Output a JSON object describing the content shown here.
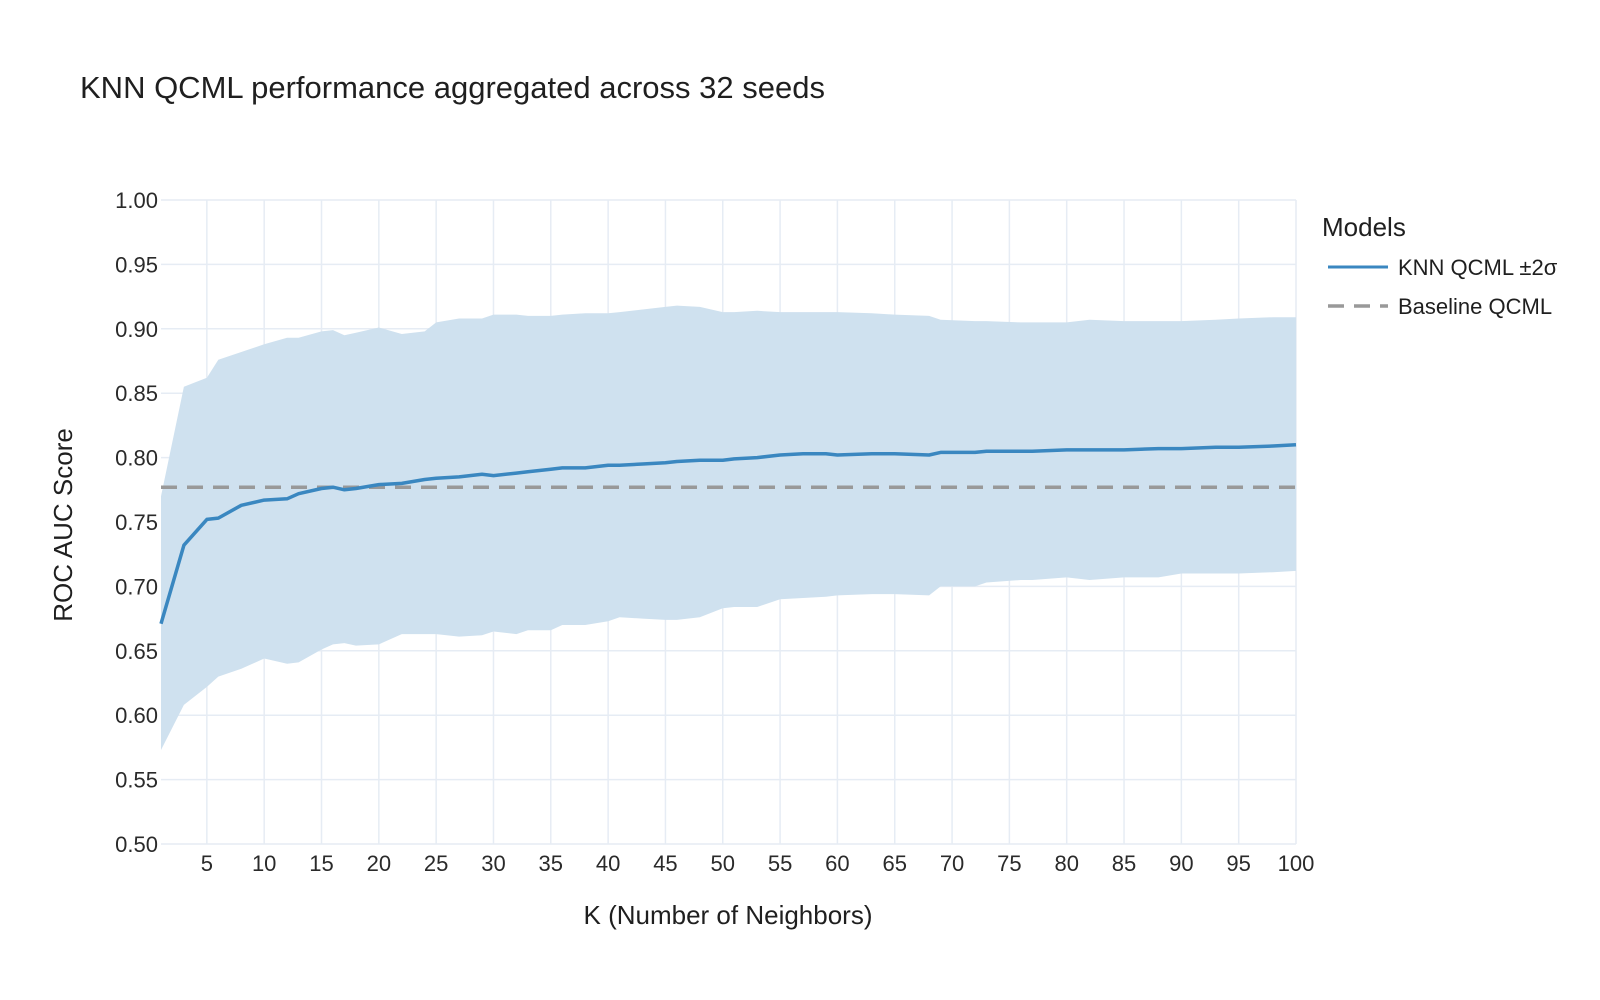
{
  "chart_data": {
    "type": "line",
    "title": "KNN QCML performance aggregated across 32 seeds",
    "xlabel": "K (Number of Neighbors)",
    "ylabel": "ROC AUC Score",
    "xlim": [
      1,
      100
    ],
    "ylim": [
      0.5,
      1.0
    ],
    "xticks": [
      5,
      10,
      15,
      20,
      25,
      30,
      35,
      40,
      45,
      50,
      55,
      60,
      65,
      70,
      75,
      80,
      85,
      90,
      95,
      100
    ],
    "yticks": [
      0.5,
      0.55,
      0.6,
      0.65,
      0.7,
      0.75,
      0.8,
      0.85,
      0.9,
      0.95,
      1.0
    ],
    "grid": true,
    "legend": {
      "title": "Models",
      "placement": "right"
    },
    "series": [
      {
        "name": "KNN QCML ±2σ",
        "color": "#3a87c0",
        "band_color": "#cfe1ef",
        "x": [
          1,
          3,
          5,
          6,
          8,
          10,
          12,
          13,
          15,
          16,
          17,
          18,
          20,
          22,
          24,
          25,
          27,
          29,
          30,
          32,
          33,
          35,
          36,
          38,
          40,
          41,
          43,
          45,
          46,
          48,
          50,
          51,
          53,
          55,
          57,
          59,
          60,
          63,
          65,
          68,
          69,
          72,
          73,
          76,
          77,
          80,
          82,
          85,
          88,
          90,
          93,
          95,
          98,
          100
        ],
        "mean": [
          0.671,
          0.732,
          0.752,
          0.753,
          0.763,
          0.767,
          0.768,
          0.772,
          0.776,
          0.777,
          0.775,
          0.776,
          0.779,
          0.78,
          0.783,
          0.784,
          0.785,
          0.787,
          0.786,
          0.788,
          0.789,
          0.791,
          0.792,
          0.792,
          0.794,
          0.794,
          0.795,
          0.796,
          0.797,
          0.798,
          0.798,
          0.799,
          0.8,
          0.802,
          0.803,
          0.803,
          0.802,
          0.803,
          0.803,
          0.802,
          0.804,
          0.804,
          0.805,
          0.805,
          0.805,
          0.806,
          0.806,
          0.806,
          0.807,
          0.807,
          0.808,
          0.808,
          0.809,
          0.81
        ],
        "upper": [
          0.77,
          0.855,
          0.862,
          0.876,
          0.882,
          0.888,
          0.893,
          0.893,
          0.898,
          0.899,
          0.895,
          0.897,
          0.901,
          0.896,
          0.898,
          0.905,
          0.908,
          0.908,
          0.911,
          0.911,
          0.91,
          0.91,
          0.911,
          0.912,
          0.912,
          0.913,
          0.915,
          0.917,
          0.918,
          0.917,
          0.913,
          0.913,
          0.914,
          0.913,
          0.913,
          0.913,
          0.913,
          0.912,
          0.911,
          0.91,
          0.907,
          0.906,
          0.906,
          0.905,
          0.905,
          0.905,
          0.907,
          0.906,
          0.906,
          0.906,
          0.907,
          0.908,
          0.909,
          0.909
        ],
        "lower": [
          0.573,
          0.608,
          0.622,
          0.63,
          0.636,
          0.644,
          0.64,
          0.641,
          0.651,
          0.655,
          0.656,
          0.654,
          0.655,
          0.663,
          0.663,
          0.663,
          0.661,
          0.662,
          0.665,
          0.663,
          0.666,
          0.666,
          0.67,
          0.67,
          0.673,
          0.676,
          0.675,
          0.674,
          0.674,
          0.676,
          0.683,
          0.684,
          0.684,
          0.69,
          0.691,
          0.692,
          0.693,
          0.694,
          0.694,
          0.693,
          0.7,
          0.7,
          0.703,
          0.705,
          0.705,
          0.707,
          0.705,
          0.707,
          0.707,
          0.71,
          0.71,
          0.71,
          0.711,
          0.712
        ]
      },
      {
        "name": "Baseline QCML",
        "color": "#999999",
        "dash": "dashed",
        "y": 0.777
      }
    ]
  }
}
